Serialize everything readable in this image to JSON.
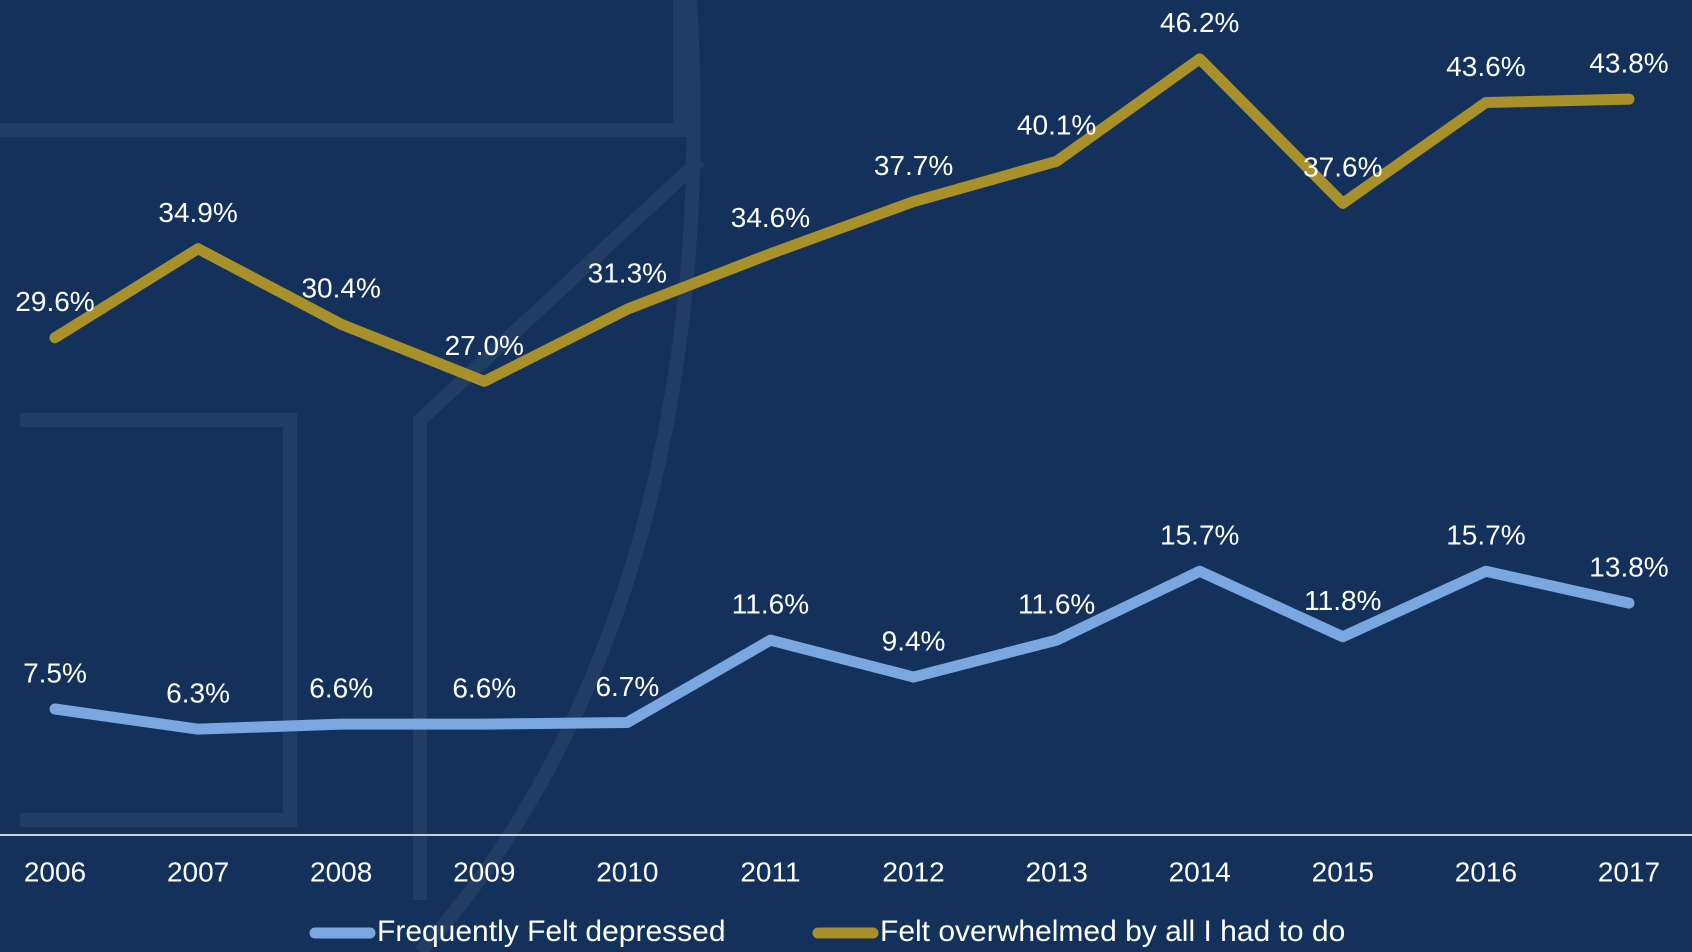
{
  "chart_data": {
    "type": "line",
    "categories": [
      "2006",
      "2007",
      "2008",
      "2009",
      "2010",
      "2011",
      "2012",
      "2013",
      "2014",
      "2015",
      "2016",
      "2017"
    ],
    "series": [
      {
        "name": "Frequently Felt depressed",
        "color": "#7ba7e0",
        "values": [
          7.5,
          6.3,
          6.6,
          6.6,
          6.7,
          11.6,
          9.4,
          11.6,
          15.7,
          11.8,
          15.7,
          13.8
        ],
        "value_labels": [
          "7.5%",
          "6.3%",
          "6.6%",
          "6.6%",
          "6.7%",
          "11.6%",
          "9.4%",
          "11.6%",
          "15.7%",
          "11.8%",
          "15.7%",
          "13.8%"
        ]
      },
      {
        "name": "Felt overwhelmed by all I had to do",
        "color": "#a8902a",
        "values": [
          29.6,
          34.9,
          30.4,
          27.0,
          31.3,
          34.6,
          37.7,
          40.1,
          46.2,
          37.6,
          43.6,
          43.8
        ],
        "value_labels": [
          "29.6%",
          "34.9%",
          "30.4%",
          "27.0%",
          "31.3%",
          "34.6%",
          "37.7%",
          "40.1%",
          "46.2%",
          "37.6%",
          "43.6%",
          "43.8%"
        ]
      }
    ],
    "ylim": [
      0,
      50
    ],
    "legend": "bottom"
  }
}
